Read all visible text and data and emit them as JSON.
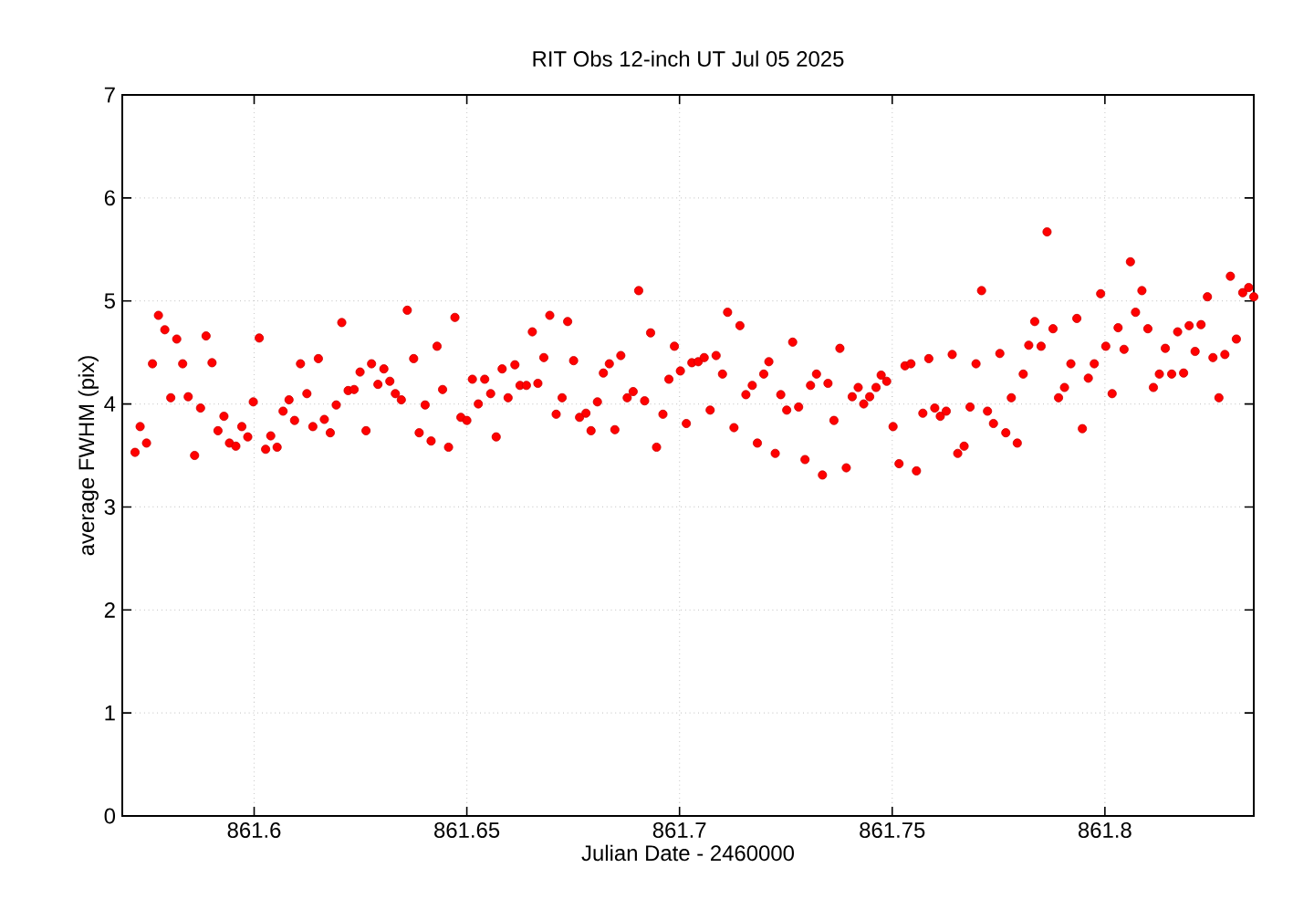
{
  "chart_data": {
    "type": "scatter",
    "title": "RIT Obs 12-inch UT Jul 05 2025",
    "xlabel": "Julian Date - 2460000",
    "ylabel": "average FWHM (pix)",
    "xlim": [
      861.569,
      861.835
    ],
    "ylim": [
      0,
      7
    ],
    "xticks": [
      861.6,
      861.65,
      861.7,
      861.75,
      861.8
    ],
    "yticks": [
      0,
      1,
      2,
      3,
      4,
      5,
      6,
      7
    ],
    "grid": true,
    "marker": "circle",
    "color": "#ff0000",
    "x": [
      861.572,
      861.5732,
      861.5747,
      861.5761,
      861.5775,
      861.579,
      861.5804,
      861.5818,
      861.5832,
      861.5845,
      861.586,
      861.5874,
      861.5887,
      861.5901,
      861.5915,
      861.5929,
      861.5942,
      861.5957,
      861.5971,
      861.5985,
      861.5998,
      861.6012,
      861.6027,
      861.6039,
      861.6054,
      861.6068,
      861.6082,
      861.6095,
      861.6109,
      861.6124,
      861.6138,
      861.6151,
      861.6165,
      861.6179,
      861.6193,
      861.6206,
      861.6221,
      861.6235,
      861.6249,
      861.6263,
      861.6276,
      861.6291,
      861.6305,
      861.6319,
      861.6332,
      861.6346,
      861.636,
      861.6375,
      861.6388,
      861.6402,
      861.6416,
      861.643,
      861.6443,
      861.6457,
      861.6472,
      861.6486,
      861.65,
      861.6513,
      861.6527,
      861.6542,
      861.6556,
      861.6569,
      861.6583,
      861.6597,
      861.6613,
      861.6625,
      861.664,
      861.6654,
      861.6667,
      861.6681,
      861.6695,
      861.671,
      861.6724,
      861.6737,
      861.6751,
      861.6765,
      861.678,
      861.6792,
      861.6807,
      861.6821,
      861.6835,
      861.6848,
      861.6862,
      861.6877,
      861.6891,
      861.6904,
      861.6918,
      861.6932,
      861.6946,
      861.6961,
      861.6975,
      861.6988,
      861.7002,
      861.7016,
      861.7029,
      861.7044,
      861.7058,
      861.7072,
      861.7086,
      861.7101,
      861.7113,
      861.7128,
      861.7142,
      861.7156,
      861.7171,
      861.7183,
      861.7198,
      861.721,
      861.7225,
      861.7238,
      861.7252,
      861.7266,
      861.728,
      861.7295,
      861.7308,
      861.7322,
      861.7336,
      861.7349,
      861.7363,
      861.7377,
      861.7392,
      861.7406,
      861.742,
      861.7433,
      861.7447,
      861.7462,
      861.7474,
      861.7487,
      861.7502,
      861.7516,
      861.753,
      861.7544,
      861.7557,
      861.7572,
      861.7586,
      861.76,
      861.7613,
      861.7627,
      861.7641,
      861.7654,
      861.7669,
      861.7683,
      861.7697,
      861.771,
      861.7724,
      861.7738,
      861.7753,
      861.7767,
      861.778,
      861.7794,
      861.7808,
      861.7821,
      861.7835,
      861.785,
      861.7864,
      861.7878,
      861.7891,
      861.7905,
      861.792,
      861.7934,
      861.7947,
      861.7961,
      861.7975,
      861.799,
      861.8002,
      861.8017,
      861.8031,
      861.8045,
      861.806,
      861.8072,
      861.8087,
      861.8101,
      861.8114,
      861.8128,
      861.8142,
      861.8157,
      861.8171,
      861.8185,
      861.8198,
      861.8212,
      861.8226,
      861.8241,
      861.8254,
      861.8268,
      861.8282,
      861.8295,
      861.8309,
      861.8324,
      861.8338,
      861.835
    ],
    "values": [
      3.53,
      3.78,
      3.62,
      4.39,
      4.86,
      4.72,
      4.06,
      4.63,
      4.39,
      4.07,
      3.5,
      3.96,
      4.66,
      4.4,
      3.74,
      3.88,
      3.62,
      3.59,
      3.78,
      3.68,
      4.02,
      4.64,
      3.56,
      3.69,
      3.58,
      3.93,
      4.04,
      3.84,
      4.39,
      4.1,
      3.78,
      4.44,
      3.85,
      3.72,
      3.99,
      4.79,
      4.13,
      4.14,
      4.31,
      3.74,
      4.39,
      4.19,
      4.34,
      4.22,
      4.1,
      4.04,
      4.91,
      4.44,
      3.72,
      3.99,
      3.64,
      4.56,
      4.14,
      3.58,
      4.84,
      3.87,
      3.84,
      4.24,
      4.0,
      4.24,
      4.1,
      3.68,
      4.34,
      4.06,
      4.38,
      4.18,
      4.18,
      4.7,
      4.2,
      4.45,
      4.86,
      3.9,
      4.06,
      4.8,
      4.42,
      3.87,
      3.91,
      3.74,
      4.02,
      4.3,
      4.39,
      3.75,
      4.47,
      4.06,
      4.12,
      5.1,
      4.03,
      4.69,
      3.58,
      3.9,
      4.24,
      4.56,
      4.32,
      3.81,
      4.4,
      4.41,
      4.45,
      3.94,
      4.47,
      4.29,
      4.89,
      3.77,
      4.76,
      4.09,
      4.18,
      3.62,
      4.29,
      4.41,
      3.52,
      4.09,
      3.94,
      4.6,
      3.97,
      3.46,
      4.18,
      4.29,
      3.31,
      4.2,
      3.84,
      4.54,
      3.38,
      4.07,
      4.16,
      4.0,
      4.07,
      4.16,
      4.28,
      4.22,
      3.78,
      3.42,
      4.37,
      4.39,
      3.35,
      3.91,
      4.44,
      3.96,
      3.88,
      3.93,
      4.48,
      3.52,
      3.59,
      3.97,
      4.39,
      5.1,
      3.93,
      3.81,
      4.49,
      3.72,
      4.06,
      3.62,
      4.29,
      4.57,
      4.8,
      4.56,
      5.67,
      4.73,
      4.06,
      4.16,
      4.39,
      4.83,
      3.76,
      4.25,
      4.39,
      5.07,
      4.56,
      4.1,
      4.74,
      4.53,
      5.38,
      4.89,
      5.1,
      4.73,
      4.16,
      4.29,
      4.54,
      4.29,
      4.7,
      4.3,
      4.76,
      4.51,
      4.77,
      5.04,
      4.45,
      4.06,
      4.48,
      5.24,
      4.63,
      5.08,
      5.13,
      5.04
    ]
  }
}
